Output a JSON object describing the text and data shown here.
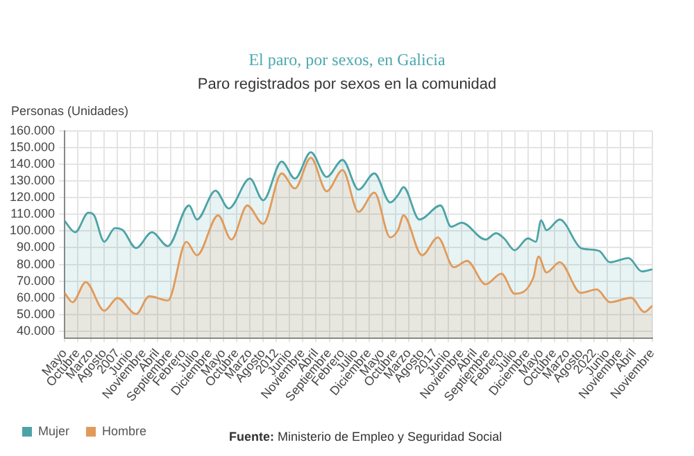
{
  "chart_data": {
    "type": "area",
    "title": "El paro, por sexos, en Galicia",
    "subtitle": "Paro registrados por sexos en la comunidad",
    "ylabel": "Personas (Unidades)",
    "annotations": [
      "Fuente: Ministerio de Empleo y Seguridad Social"
    ],
    "xlim": [
      "2005-05",
      "2023-11"
    ],
    "xticks": [
      {
        "value": "2005-05",
        "label": "Mayo"
      },
      {
        "value": "2005-10",
        "label": "Octubre"
      },
      {
        "value": "2006-03",
        "label": "Marzo"
      },
      {
        "value": "2006-08",
        "label": "Agosto"
      },
      {
        "value": "2007-01",
        "label": "2007"
      },
      {
        "value": "2007-06",
        "label": "Junio"
      },
      {
        "value": "2007-11",
        "label": "Noviembre"
      },
      {
        "value": "2008-04",
        "label": "Abril"
      },
      {
        "value": "2008-09",
        "label": "Septiembre"
      },
      {
        "value": "2009-02",
        "label": "Febrero"
      },
      {
        "value": "2009-07",
        "label": "Julio"
      },
      {
        "value": "2009-12",
        "label": "Diciembre"
      },
      {
        "value": "2010-05",
        "label": "Mayo"
      },
      {
        "value": "2010-10",
        "label": "Octubre"
      },
      {
        "value": "2011-03",
        "label": "Marzo"
      },
      {
        "value": "2011-08",
        "label": "Agosto"
      },
      {
        "value": "2012-01",
        "label": "2012"
      },
      {
        "value": "2012-06",
        "label": "Junio"
      },
      {
        "value": "2012-11",
        "label": "Noviembre"
      },
      {
        "value": "2013-04",
        "label": "Abril"
      },
      {
        "value": "2013-09",
        "label": "Septiembre"
      },
      {
        "value": "2014-02",
        "label": "Febrero"
      },
      {
        "value": "2014-07",
        "label": "Julio"
      },
      {
        "value": "2014-12",
        "label": "Diciembre"
      },
      {
        "value": "2015-05",
        "label": "Mayo"
      },
      {
        "value": "2015-10",
        "label": "Octubre"
      },
      {
        "value": "2016-03",
        "label": "Marzo"
      },
      {
        "value": "2016-08",
        "label": "Agosto"
      },
      {
        "value": "2017-01",
        "label": "2017"
      },
      {
        "value": "2017-06",
        "label": "Junio"
      },
      {
        "value": "2017-11",
        "label": "Noviembre"
      },
      {
        "value": "2018-04",
        "label": "Abril"
      },
      {
        "value": "2018-09",
        "label": "Septiembre"
      },
      {
        "value": "2019-02",
        "label": "Febrero"
      },
      {
        "value": "2019-07",
        "label": "Julio"
      },
      {
        "value": "2019-12",
        "label": "Diciembre"
      },
      {
        "value": "2020-05",
        "label": "Mayo"
      },
      {
        "value": "2020-10",
        "label": "Octubre"
      },
      {
        "value": "2021-03",
        "label": "Marzo"
      },
      {
        "value": "2021-08",
        "label": "Agosto"
      },
      {
        "value": "2022-01",
        "label": "2022"
      },
      {
        "value": "2022-06",
        "label": "Junio"
      },
      {
        "value": "2022-11",
        "label": "Noviembre"
      },
      {
        "value": "2023-04",
        "label": "Abril"
      },
      {
        "value": "2023-11",
        "label": "Noviembre"
      }
    ],
    "ylim": [
      36000,
      160000
    ],
    "yticks": [
      {
        "value": 40000,
        "label": "40.000"
      },
      {
        "value": 50000,
        "label": "50.000"
      },
      {
        "value": 60000,
        "label": "60.000"
      },
      {
        "value": 70000,
        "label": "70.000"
      },
      {
        "value": 80000,
        "label": "80.000"
      },
      {
        "value": 90000,
        "label": "90.000"
      },
      {
        "value": 100000,
        "label": "100.000"
      },
      {
        "value": 110000,
        "label": "110.000"
      },
      {
        "value": 120000,
        "label": "120.000"
      },
      {
        "value": 130000,
        "label": "130.000"
      },
      {
        "value": 140000,
        "label": "140.000"
      },
      {
        "value": 150000,
        "label": "150.000"
      },
      {
        "value": 160000,
        "label": "160.000"
      }
    ],
    "grid": true,
    "legend": "bottom",
    "series": [
      {
        "name": "Mujer",
        "color": "#4ca3a6",
        "x": [
          "2005-05",
          "2005-09",
          "2006-02",
          "2006-04",
          "2006-08",
          "2006-12",
          "2007-03",
          "2007-08",
          "2008-02",
          "2008-08",
          "2009-04",
          "2009-07",
          "2010-02",
          "2010-07",
          "2011-03",
          "2011-08",
          "2012-03",
          "2012-08",
          "2013-02",
          "2013-08",
          "2014-02",
          "2014-08",
          "2015-02",
          "2015-08",
          "2015-11",
          "2016-01",
          "2016-07",
          "2017-03",
          "2017-07",
          "2017-11",
          "2018-08",
          "2018-12",
          "2019-03",
          "2019-07",
          "2019-12",
          "2020-03",
          "2020-05",
          "2020-07",
          "2020-12",
          "2021-08",
          "2021-11",
          "2022-03",
          "2022-07",
          "2023-02",
          "2023-07",
          "2023-11"
        ],
        "values": [
          106000,
          99300,
          111000,
          109800,
          93600,
          101800,
          100500,
          89800,
          99300,
          91000,
          115300,
          106900,
          124200,
          113500,
          131400,
          118400,
          141600,
          131400,
          147200,
          132400,
          142600,
          124800,
          134500,
          117100,
          121700,
          126300,
          106900,
          115300,
          102600,
          105000,
          94900,
          98700,
          95600,
          88500,
          95600,
          93600,
          106400,
          100500,
          106900,
          89800,
          89000,
          88000,
          81300,
          83800,
          75800,
          77100
        ]
      },
      {
        "name": "Hombre",
        "color": "#e19a5a",
        "x": [
          "2005-05",
          "2005-08",
          "2006-01",
          "2006-08",
          "2007-01",
          "2007-08",
          "2008-01",
          "2008-08",
          "2009-03",
          "2009-07",
          "2010-03",
          "2010-08",
          "2011-02",
          "2011-08",
          "2012-03",
          "2012-08",
          "2013-02",
          "2013-08",
          "2014-02",
          "2014-08",
          "2015-02",
          "2015-08",
          "2015-11",
          "2016-01",
          "2016-08",
          "2017-02",
          "2017-08",
          "2018-01",
          "2018-08",
          "2019-02",
          "2019-07",
          "2020-02",
          "2020-04",
          "2020-07",
          "2020-12",
          "2021-08",
          "2022-02",
          "2022-07",
          "2023-03",
          "2023-08",
          "2023-11"
        ],
        "values": [
          63000,
          57400,
          69400,
          52300,
          59900,
          50300,
          61000,
          58400,
          93600,
          85500,
          109400,
          94900,
          115300,
          104300,
          134500,
          125500,
          143900,
          123800,
          136500,
          111500,
          123000,
          96200,
          100800,
          109400,
          85500,
          96200,
          78300,
          82100,
          68100,
          74500,
          62500,
          71900,
          84700,
          75200,
          81300,
          63000,
          65000,
          57400,
          60000,
          51500,
          55300
        ]
      }
    ]
  }
}
